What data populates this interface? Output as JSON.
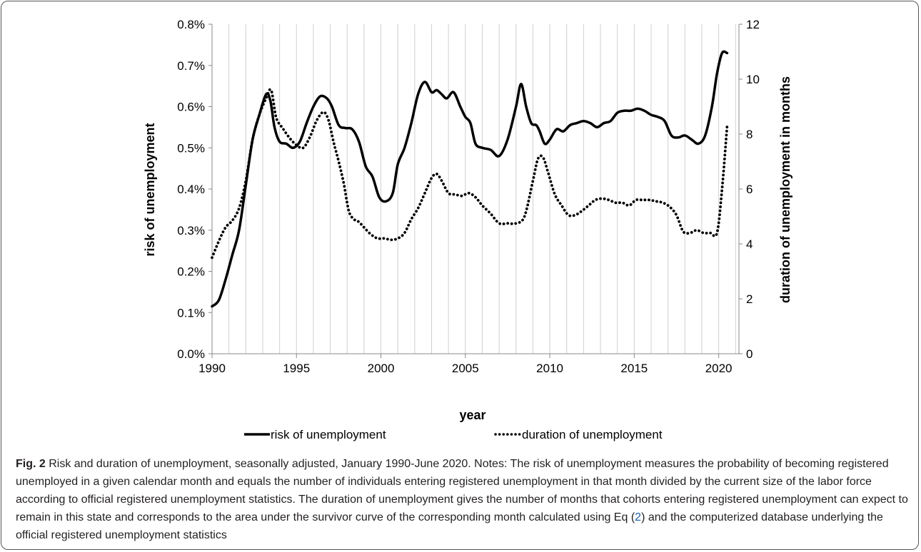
{
  "chart_data": {
    "type": "line",
    "xlabel": "year",
    "ylabel": "risk of unemployment",
    "y2label": "duration of unemployment in months",
    "x_ticks": [
      "1990",
      "1995",
      "2000",
      "2005",
      "2010",
      "2015",
      "2020"
    ],
    "y_ticks": [
      "0.0%",
      "0.1%",
      "0.2%",
      "0.3%",
      "0.4%",
      "0.5%",
      "0.6%",
      "0.7%",
      "0.8%"
    ],
    "y2_ticks": [
      "0",
      "2",
      "4",
      "6",
      "8",
      "10",
      "12"
    ],
    "xlim": [
      1990,
      2021.2
    ],
    "ylim": [
      0,
      0.8
    ],
    "y2lim": [
      0,
      12
    ],
    "grid": "vertical",
    "legend_position": "bottom",
    "series": [
      {
        "name": "risk of unemployment",
        "axis": "left",
        "style": "solid",
        "x": [
          1990.0,
          1990.4,
          1990.8,
          1991.2,
          1991.6,
          1992.0,
          1992.4,
          1992.8,
          1993.2,
          1993.45,
          1993.7,
          1994.0,
          1994.4,
          1994.8,
          1995.2,
          1995.6,
          1996.0,
          1996.4,
          1996.8,
          1997.1,
          1997.5,
          1997.9,
          1998.3,
          1998.7,
          1999.1,
          1999.5,
          1999.9,
          2000.3,
          2000.7,
          2001.0,
          2001.4,
          2001.8,
          2002.2,
          2002.6,
          2003.0,
          2003.3,
          2003.6,
          2003.9,
          2004.3,
          2004.7,
          2005.0,
          2005.3,
          2005.6,
          2006.0,
          2006.5,
          2007.0,
          2007.5,
          2008.0,
          2008.3,
          2008.6,
          2008.9,
          2009.2,
          2009.4,
          2009.7,
          2010.0,
          2010.4,
          2010.8,
          2011.2,
          2011.6,
          2012.0,
          2012.4,
          2012.8,
          2013.2,
          2013.6,
          2014.0,
          2014.4,
          2014.8,
          2015.2,
          2015.6,
          2016.0,
          2016.4,
          2016.8,
          2017.2,
          2017.6,
          2018.0,
          2018.4,
          2018.8,
          2019.2,
          2019.6,
          2019.9,
          2020.2,
          2020.5
        ],
        "values": [
          0.115,
          0.13,
          0.18,
          0.24,
          0.3,
          0.41,
          0.52,
          0.58,
          0.63,
          0.615,
          0.55,
          0.515,
          0.51,
          0.5,
          0.515,
          0.56,
          0.6,
          0.625,
          0.62,
          0.6,
          0.555,
          0.548,
          0.545,
          0.515,
          0.455,
          0.43,
          0.38,
          0.37,
          0.39,
          0.46,
          0.5,
          0.56,
          0.63,
          0.66,
          0.635,
          0.64,
          0.63,
          0.62,
          0.635,
          0.6,
          0.575,
          0.56,
          0.51,
          0.5,
          0.495,
          0.48,
          0.52,
          0.6,
          0.655,
          0.6,
          0.56,
          0.555,
          0.54,
          0.51,
          0.52,
          0.545,
          0.54,
          0.555,
          0.56,
          0.565,
          0.56,
          0.55,
          0.56,
          0.565,
          0.585,
          0.59,
          0.59,
          0.595,
          0.59,
          0.58,
          0.575,
          0.565,
          0.53,
          0.525,
          0.53,
          0.52,
          0.51,
          0.53,
          0.6,
          0.68,
          0.73,
          0.73
        ]
      },
      {
        "name": "duration of unemployment",
        "axis": "right",
        "style": "dotted",
        "x": [
          1990.0,
          1990.4,
          1990.8,
          1991.2,
          1991.6,
          1992.0,
          1992.4,
          1992.8,
          1993.2,
          1993.5,
          1993.8,
          1994.2,
          1994.6,
          1995.0,
          1995.4,
          1995.8,
          1996.2,
          1996.6,
          1996.9,
          1997.2,
          1997.5,
          1997.8,
          1998.1,
          1998.4,
          1998.7,
          1999.0,
          1999.4,
          1999.8,
          2000.2,
          2000.6,
          2001.0,
          2001.4,
          2001.8,
          2002.2,
          2002.6,
          2003.0,
          2003.3,
          2003.6,
          2004.0,
          2004.4,
          2004.8,
          2005.2,
          2005.6,
          2006.0,
          2006.5,
          2007.0,
          2007.5,
          2008.0,
          2008.5,
          2009.0,
          2009.3,
          2009.6,
          2009.9,
          2010.3,
          2010.7,
          2011.1,
          2011.5,
          2011.9,
          2012.3,
          2012.7,
          2013.1,
          2013.5,
          2013.9,
          2014.3,
          2014.7,
          2015.1,
          2015.5,
          2015.9,
          2016.3,
          2016.7,
          2017.1,
          2017.5,
          2017.9,
          2018.3,
          2018.7,
          2019.1,
          2019.5,
          2019.9,
          2020.2,
          2020.5
        ],
        "values": [
          3.5,
          4.1,
          4.6,
          4.85,
          5.3,
          6.3,
          7.8,
          8.7,
          9.3,
          9.6,
          8.6,
          8.2,
          7.85,
          7.6,
          7.5,
          7.9,
          8.5,
          8.8,
          8.5,
          7.7,
          7.0,
          6.2,
          5.2,
          4.9,
          4.8,
          4.6,
          4.35,
          4.2,
          4.2,
          4.15,
          4.2,
          4.4,
          4.9,
          5.3,
          5.85,
          6.4,
          6.55,
          6.3,
          5.85,
          5.8,
          5.75,
          5.85,
          5.7,
          5.4,
          5.1,
          4.75,
          4.75,
          4.75,
          5.0,
          6.3,
          7.1,
          7.15,
          6.6,
          5.8,
          5.4,
          5.05,
          5.05,
          5.2,
          5.4,
          5.6,
          5.65,
          5.6,
          5.5,
          5.5,
          5.4,
          5.6,
          5.6,
          5.6,
          5.55,
          5.5,
          5.35,
          5.05,
          4.45,
          4.4,
          4.5,
          4.4,
          4.4,
          4.4,
          6.0,
          8.3
        ]
      }
    ]
  },
  "caption": {
    "label": "Fig. 2",
    "text_before_ref": " Risk and duration of unemployment, seasonally adjusted, January 1990-June 2020. Notes: The risk of unemployment measures the probability of becoming registered unemployed in a given calendar month and equals the number of individuals entering registered unemployment in that month divided by the current size of the labor force according to official registered unemployment statistics. The duration of unemployment gives the number of months that cohorts entering registered unemployment can expect to remain in this state and corresponds to the area under the survivor curve of the corresponding month calculated using Eq (",
    "ref": "2",
    "text_after_ref": ") and the computerized database underlying the official registered unemployment statistics"
  }
}
